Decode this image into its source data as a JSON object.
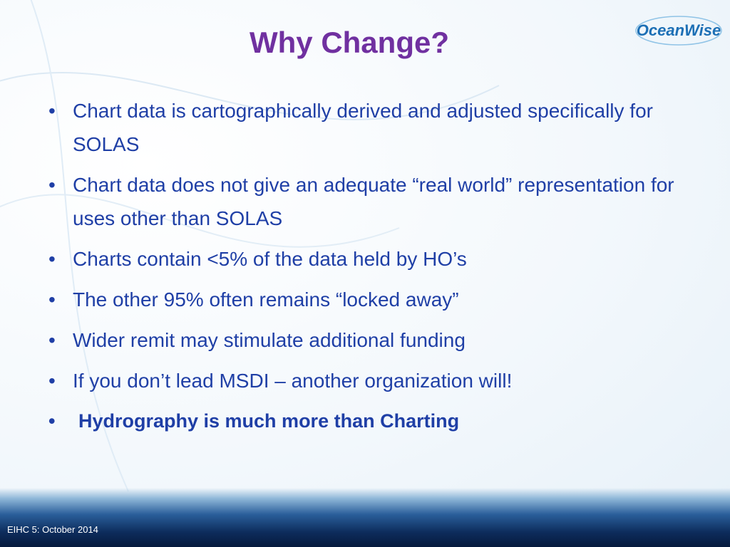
{
  "slide": {
    "logo": "OceanWise",
    "title": "Why Change?",
    "bullets": [
      {
        "text": "Chart data is cartographically derived and adjusted specifically for SOLAS",
        "bold": false
      },
      {
        "text": "Chart data does not give an adequate “real world” representation for uses other than SOLAS",
        "bold": false
      },
      {
        "text": "Charts contain <5% of the data held by HO’s",
        "bold": false
      },
      {
        "text": "The other 95% often remains “locked away”",
        "bold": false
      },
      {
        "text": "Wider remit may stimulate additional funding",
        "bold": false
      },
      {
        "text": "If you don’t lead MSDI – another organization will!",
        "bold": false
      },
      {
        "text": "Hydrography is much more than Charting",
        "bold": true
      }
    ],
    "footer": "EIHC 5: October 2014"
  }
}
